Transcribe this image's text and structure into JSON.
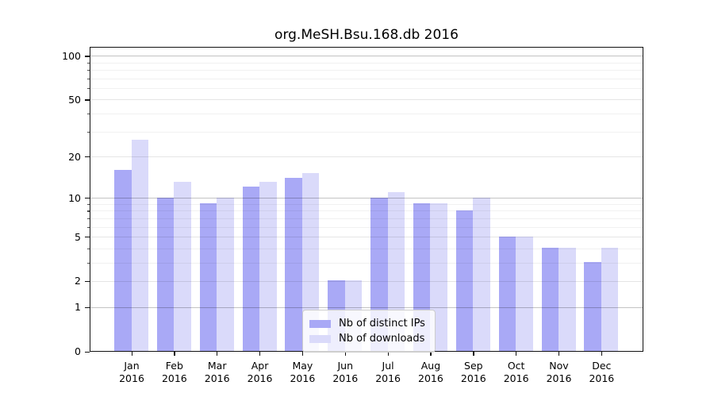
{
  "title": "org.MeSH.Bsu.168.db 2016",
  "chart_data": {
    "type": "bar",
    "title": "org.MeSH.Bsu.168.db 2016",
    "categories": [
      "Jan",
      "Feb",
      "Mar",
      "Apr",
      "May",
      "Jun",
      "Jul",
      "Aug",
      "Sep",
      "Oct",
      "Nov",
      "Dec"
    ],
    "category_year": "2016",
    "series": [
      {
        "name": "Nb of distinct IPs",
        "color": "#a9a9f6",
        "values": [
          16,
          10,
          9,
          12,
          14,
          2,
          10,
          9,
          8,
          5,
          4,
          3
        ]
      },
      {
        "name": "Nb of downloads",
        "color": "#dadafa",
        "values": [
          26,
          13,
          10,
          13,
          15,
          2,
          11,
          9,
          10,
          5,
          4,
          4
        ]
      }
    ],
    "xlabel": "",
    "ylabel": "",
    "y_axis": {
      "scale": "log1p",
      "labeled_ticks": [
        0,
        1,
        2,
        5,
        10,
        20,
        50,
        100
      ],
      "decade_ticks": [
        1,
        10,
        100
      ],
      "minor_ticks": [
        3,
        4,
        6,
        7,
        8,
        9,
        30,
        40,
        60,
        70,
        80,
        90
      ],
      "top_value": 116,
      "ylim": [
        0,
        116
      ]
    },
    "grid": true,
    "legend_position": "inside-bottom-center"
  },
  "colors": {
    "bar_distinct_ips": "#a9a9f6",
    "bar_downloads": "#dadafa",
    "grid_decade": "rgba(0,0,0,0.235)",
    "grid_labeled": "rgba(0,0,0,0.10)",
    "grid_minor": "rgba(0,0,0,0.055)",
    "axis_frame": "#111111"
  }
}
